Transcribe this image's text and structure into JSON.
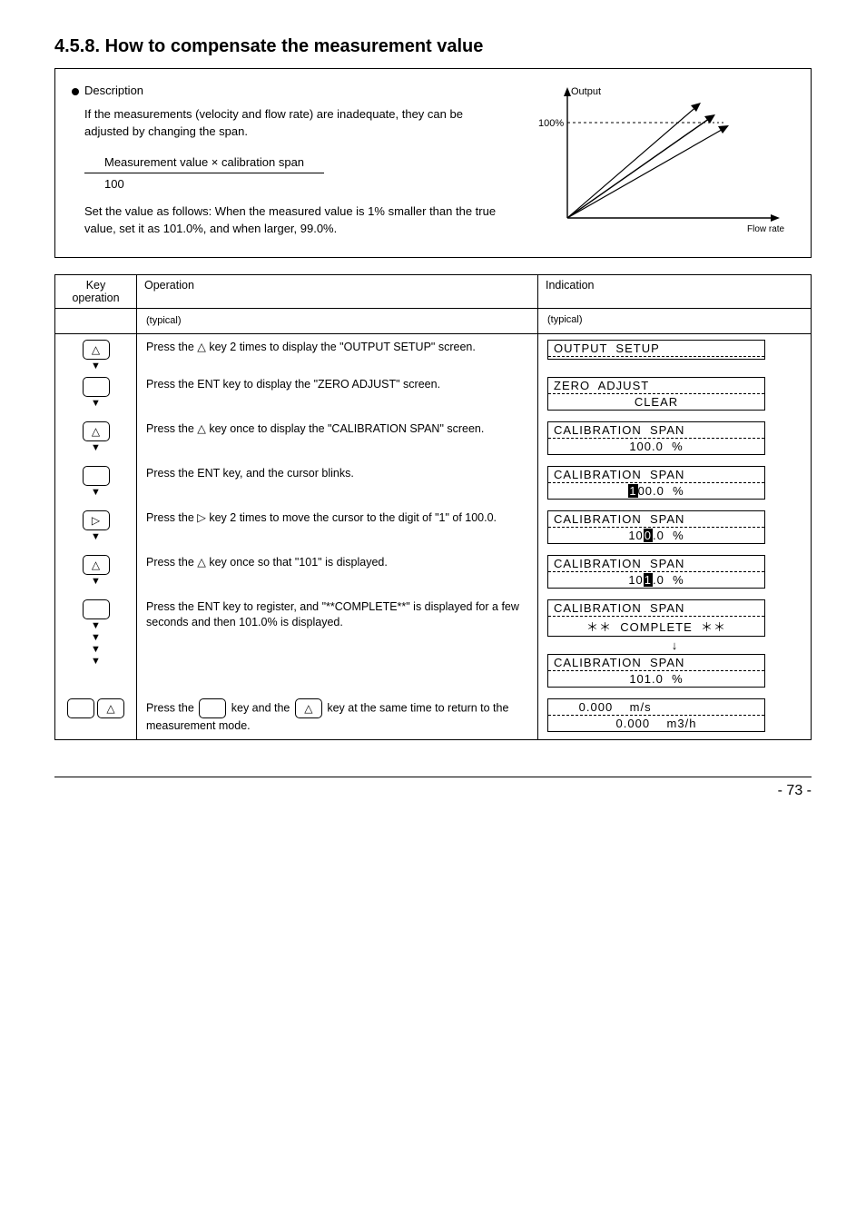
{
  "section": {
    "number": "4.5.8.",
    "title": "How to compensate the measurement value"
  },
  "description": {
    "intro_label": "Description",
    "text": "If the measurements (velocity and flow rate) are inadequate, they can be adjusted by changing the span.",
    "formula_top": "Measurement value × calibration span",
    "formula_bottom": "100",
    "note": "Set the value as follows: When the measured value is 1% smaller than the true value, set it as 101.0%, and when larger, 99.0%."
  },
  "chart": {
    "y_label": "Output",
    "x_label": "Flow rate",
    "y_tick": "100%",
    "axis_color": "#000000",
    "dash_color": "#000000",
    "arrow_heads": true
  },
  "table": {
    "headers": {
      "key": "Key operation",
      "op": "Operation",
      "ind": "Indication"
    },
    "subhead": "(typical)",
    "rows": [
      {
        "keys": [
          {
            "type": "tri-up"
          }
        ],
        "tri_after": true,
        "op": "Press the △ key 2 times to display the \"OUTPUT SETUP\" screen.",
        "lcd": {
          "l1": "OUTPUT  SETUP",
          "l2": ""
        }
      },
      {
        "keys": [
          {
            "type": "ent"
          }
        ],
        "tri_after": true,
        "op": "Press the ENT key to display the \"ZERO ADJUST\" screen.",
        "lcd": {
          "l1": "ZERO  ADJUST",
          "l2": "CLEAR"
        }
      },
      {
        "keys": [
          {
            "type": "tri-up"
          }
        ],
        "tri_after": true,
        "op": "Press the △ key once to display the \"CALIBRATION SPAN\" screen.",
        "lcd": {
          "l1": "CALIBRATION  SPAN",
          "l2": "100.0  %"
        }
      },
      {
        "keys": [
          {
            "type": "ent"
          }
        ],
        "tri_after": true,
        "op": "Press the ENT key, and the cursor blinks.",
        "lcd": {
          "l1": "CALIBRATION  SPAN",
          "l2_parts": [
            {
              "t": "1",
              "inv": true
            },
            {
              "t": "00.0  %"
            }
          ]
        }
      },
      {
        "keys": [
          {
            "type": "tri-right"
          }
        ],
        "tri_after": true,
        "op": "Press the ▷ key 2 times to move the cursor to the digit of \"1\" of 100.0.",
        "lcd": {
          "l1": "CALIBRATION  SPAN",
          "l2_parts": [
            {
              "t": "10"
            },
            {
              "t": "0",
              "inv": true
            },
            {
              "t": ".0  %"
            }
          ]
        }
      },
      {
        "keys": [
          {
            "type": "tri-up"
          }
        ],
        "tri_after": true,
        "op": "Press the △ key once so that \"101\" is displayed.",
        "lcd": {
          "l1": "CALIBRATION  SPAN",
          "l2_parts": [
            {
              "t": "10"
            },
            {
              "t": "1",
              "inv": true
            },
            {
              "t": ".0  %"
            }
          ]
        }
      },
      {
        "keys": [
          {
            "type": "ent"
          }
        ],
        "tri_after_multi": 4,
        "op": "Press the ENT key to register, and \"**COMPLETE**\" is displayed for a few seconds and then 101.0% is displayed.",
        "lcd_pair": [
          {
            "l1": "CALIBRATION  SPAN",
            "l2": "＊＊  COMPLETE  ＊＊"
          },
          {
            "l1": "CALIBRATION  SPAN",
            "l2": "101.0  %"
          }
        ]
      },
      {
        "keys": [
          {
            "type": "ent"
          },
          {
            "type": "tri-up"
          }
        ],
        "op_parts": [
          "Press the ",
          {
            "btn": "ent"
          },
          " key and the ",
          {
            "btn": "tri-up"
          },
          " key at the same time to return to the measurement mode."
        ],
        "lcd": {
          "l1": "      0.000    m/s",
          "l2": "0.000    m3/h"
        }
      }
    ]
  },
  "page_number": "- 73 -"
}
